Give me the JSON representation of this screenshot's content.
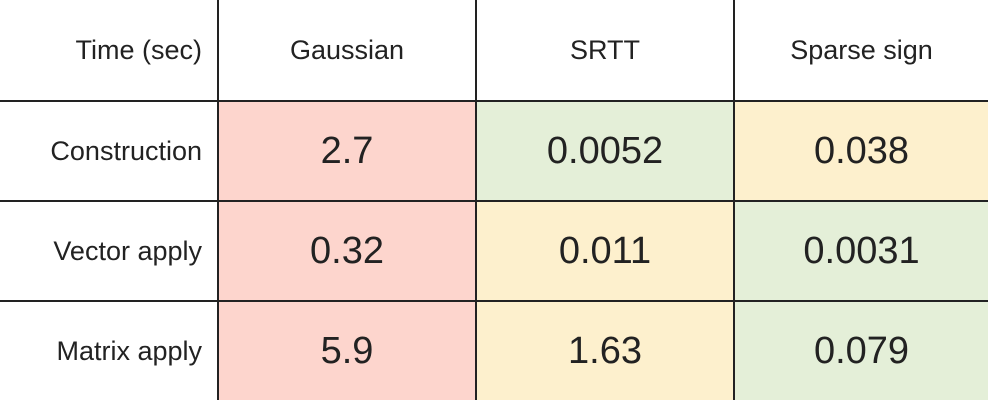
{
  "colors": {
    "slow": "#fdd5cd",
    "medium": "#fdf0cd",
    "fast": "#e4efd8"
  },
  "chart_data": {
    "type": "table",
    "corner_label": "Time (sec)",
    "columns": [
      "Gaussian",
      "SRTT",
      "Sparse sign"
    ],
    "rows": [
      {
        "label": "Construction",
        "values": [
          "2.7",
          "0.0052",
          "0.038"
        ],
        "shading": [
          "slow",
          "fast",
          "medium"
        ]
      },
      {
        "label": "Vector apply",
        "values": [
          "0.32",
          "0.011",
          "0.0031"
        ],
        "shading": [
          "slow",
          "medium",
          "fast"
        ]
      },
      {
        "label": "Matrix apply",
        "values": [
          "5.9",
          "1.63",
          "0.079"
        ],
        "shading": [
          "slow",
          "medium",
          "fast"
        ]
      }
    ]
  }
}
